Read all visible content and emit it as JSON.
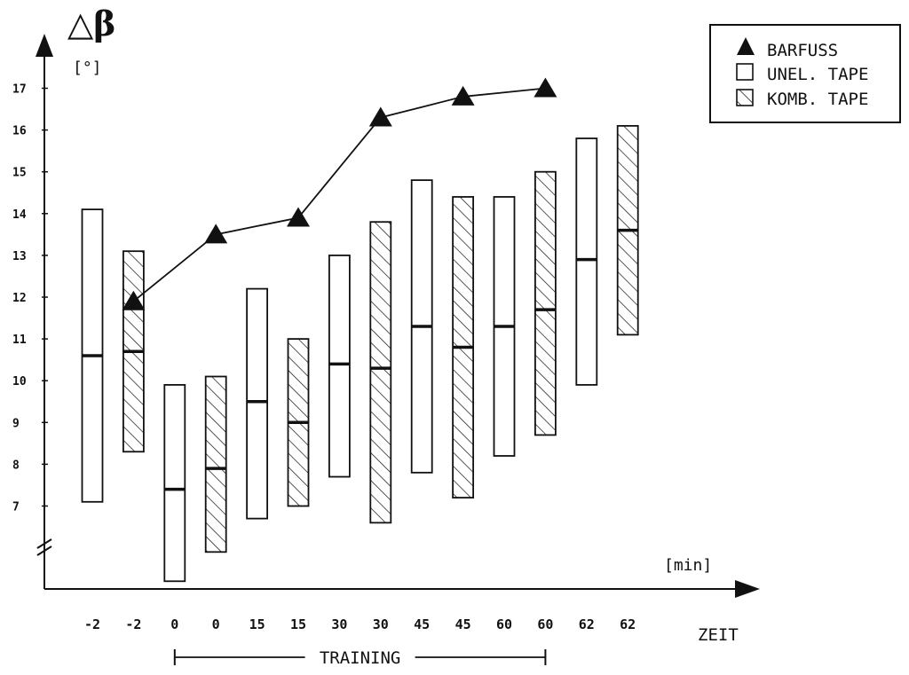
{
  "chart_data": {
    "type": "bar",
    "title": "△β",
    "ylabel_unit": "[°]",
    "xlabel": "ZEIT",
    "xunit": "[min]",
    "ylim": [
      5,
      17.6
    ],
    "yticks": [
      7,
      8,
      9,
      10,
      11,
      12,
      13,
      14,
      15,
      16,
      17
    ],
    "y_axis_break": true,
    "categories": [
      "-2",
      "-2",
      "0",
      "0",
      "15",
      "15",
      "30",
      "30",
      "45",
      "45",
      "60",
      "60",
      "62",
      "62"
    ],
    "series": [
      {
        "name": "BARFUSS",
        "kind": "line-triangle",
        "points": [
          {
            "cat": 1,
            "label": "-2",
            "value": 11.9
          },
          {
            "cat": 3,
            "label": "0",
            "value": 13.5
          },
          {
            "cat": 5,
            "label": "15",
            "value": 13.9
          },
          {
            "cat": 7,
            "label": "30",
            "value": 16.3
          },
          {
            "cat": 9,
            "label": "45",
            "value": 16.8
          },
          {
            "cat": 11,
            "label": "60",
            "value": 17.0
          }
        ]
      },
      {
        "name": "UNEL. TAPE",
        "kind": "range-bar",
        "pattern": "none",
        "bars": [
          {
            "cat": 0,
            "label": "-2",
            "low": 7.1,
            "mean": 10.6,
            "high": 14.1
          },
          {
            "cat": 2,
            "label": "0",
            "low": 5.2,
            "mean": 7.4,
            "high": 9.9
          },
          {
            "cat": 4,
            "label": "15",
            "low": 6.7,
            "mean": 9.5,
            "high": 12.2
          },
          {
            "cat": 6,
            "label": "30",
            "low": 7.7,
            "mean": 10.4,
            "high": 13.0
          },
          {
            "cat": 8,
            "label": "45",
            "low": 7.8,
            "mean": 11.3,
            "high": 14.8
          },
          {
            "cat": 10,
            "label": "60",
            "low": 8.2,
            "mean": 11.3,
            "high": 14.4
          },
          {
            "cat": 12,
            "label": "62",
            "low": 9.9,
            "mean": 12.9,
            "high": 15.8
          }
        ]
      },
      {
        "name": "KOMB. TAPE",
        "kind": "range-bar",
        "pattern": "hatched",
        "bars": [
          {
            "cat": 1,
            "label": "-2",
            "low": 8.3,
            "mean": 10.7,
            "high": 13.1
          },
          {
            "cat": 3,
            "label": "0",
            "low": 5.9,
            "mean": 7.9,
            "high": 10.1
          },
          {
            "cat": 5,
            "label": "15",
            "low": 7.0,
            "mean": 9.0,
            "high": 11.0
          },
          {
            "cat": 7,
            "label": "30",
            "low": 6.6,
            "mean": 10.3,
            "high": 13.8
          },
          {
            "cat": 9,
            "label": "45",
            "low": 7.2,
            "mean": 10.8,
            "high": 14.4
          },
          {
            "cat": 11,
            "label": "60",
            "low": 8.7,
            "mean": 11.7,
            "high": 15.0
          },
          {
            "cat": 13,
            "label": "62",
            "low": 11.1,
            "mean": 13.6,
            "high": 16.1
          }
        ]
      }
    ],
    "legend": {
      "position": "top-right",
      "entries": [
        "BARFUSS",
        "UNEL. TAPE",
        "KOMB. TAPE"
      ]
    },
    "annotations": [
      {
        "text": "TRAINING",
        "from_cat": 2,
        "to_cat": 11
      }
    ],
    "grid": false,
    "colors": {
      "ink": "#111111",
      "background": "#ffffff"
    }
  }
}
